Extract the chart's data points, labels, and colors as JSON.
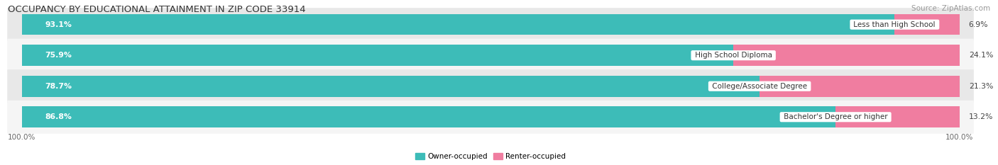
{
  "title": "OCCUPANCY BY EDUCATIONAL ATTAINMENT IN ZIP CODE 33914",
  "source": "Source: ZipAtlas.com",
  "categories": [
    "Less than High School",
    "High School Diploma",
    "College/Associate Degree",
    "Bachelor's Degree or higher"
  ],
  "owner_values": [
    93.1,
    75.9,
    78.7,
    86.8
  ],
  "renter_values": [
    6.9,
    24.1,
    21.3,
    13.2
  ],
  "owner_color": "#3DBCB8",
  "renter_color": "#F07DA0",
  "owner_color_light": "#4ECECE",
  "renter_color_light": "#F9A8C0",
  "row_bg_even": "#E8E8E8",
  "row_bg_odd": "#F5F5F5",
  "background_color": "#FFFFFF",
  "legend_owner": "Owner-occupied",
  "legend_renter": "Renter-occupied",
  "title_fontsize": 9.5,
  "source_fontsize": 7.5,
  "label_fontsize": 7.5,
  "value_fontsize": 7.8,
  "axis_label_fontsize": 7.5,
  "left_pct_label": "100.0%",
  "right_pct_label": "100.0%"
}
